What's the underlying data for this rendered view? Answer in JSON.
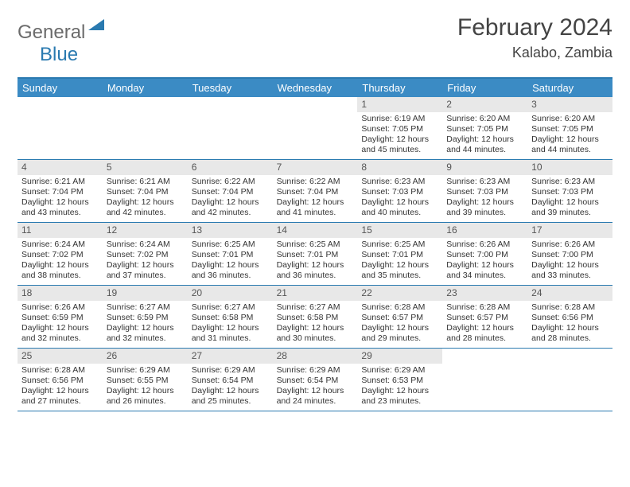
{
  "brand": {
    "part1": "General",
    "part2": "Blue"
  },
  "title": "February 2024",
  "location": "Kalabo, Zambia",
  "colors": {
    "header_bg": "#3b8bc4",
    "rule": "#2a7ab0",
    "daynum_bg": "#e8e8e8",
    "text": "#333333",
    "logo_gray": "#6b6b6b",
    "logo_blue": "#2a7ab0"
  },
  "day_names": [
    "Sunday",
    "Monday",
    "Tuesday",
    "Wednesday",
    "Thursday",
    "Friday",
    "Saturday"
  ],
  "weeks": [
    [
      null,
      null,
      null,
      null,
      {
        "n": "1",
        "sr": "6:19 AM",
        "ss": "7:05 PM",
        "dl": "12 hours and 45 minutes."
      },
      {
        "n": "2",
        "sr": "6:20 AM",
        "ss": "7:05 PM",
        "dl": "12 hours and 44 minutes."
      },
      {
        "n": "3",
        "sr": "6:20 AM",
        "ss": "7:05 PM",
        "dl": "12 hours and 44 minutes."
      }
    ],
    [
      {
        "n": "4",
        "sr": "6:21 AM",
        "ss": "7:04 PM",
        "dl": "12 hours and 43 minutes."
      },
      {
        "n": "5",
        "sr": "6:21 AM",
        "ss": "7:04 PM",
        "dl": "12 hours and 42 minutes."
      },
      {
        "n": "6",
        "sr": "6:22 AM",
        "ss": "7:04 PM",
        "dl": "12 hours and 42 minutes."
      },
      {
        "n": "7",
        "sr": "6:22 AM",
        "ss": "7:04 PM",
        "dl": "12 hours and 41 minutes."
      },
      {
        "n": "8",
        "sr": "6:23 AM",
        "ss": "7:03 PM",
        "dl": "12 hours and 40 minutes."
      },
      {
        "n": "9",
        "sr": "6:23 AM",
        "ss": "7:03 PM",
        "dl": "12 hours and 39 minutes."
      },
      {
        "n": "10",
        "sr": "6:23 AM",
        "ss": "7:03 PM",
        "dl": "12 hours and 39 minutes."
      }
    ],
    [
      {
        "n": "11",
        "sr": "6:24 AM",
        "ss": "7:02 PM",
        "dl": "12 hours and 38 minutes."
      },
      {
        "n": "12",
        "sr": "6:24 AM",
        "ss": "7:02 PM",
        "dl": "12 hours and 37 minutes."
      },
      {
        "n": "13",
        "sr": "6:25 AM",
        "ss": "7:01 PM",
        "dl": "12 hours and 36 minutes."
      },
      {
        "n": "14",
        "sr": "6:25 AM",
        "ss": "7:01 PM",
        "dl": "12 hours and 36 minutes."
      },
      {
        "n": "15",
        "sr": "6:25 AM",
        "ss": "7:01 PM",
        "dl": "12 hours and 35 minutes."
      },
      {
        "n": "16",
        "sr": "6:26 AM",
        "ss": "7:00 PM",
        "dl": "12 hours and 34 minutes."
      },
      {
        "n": "17",
        "sr": "6:26 AM",
        "ss": "7:00 PM",
        "dl": "12 hours and 33 minutes."
      }
    ],
    [
      {
        "n": "18",
        "sr": "6:26 AM",
        "ss": "6:59 PM",
        "dl": "12 hours and 32 minutes."
      },
      {
        "n": "19",
        "sr": "6:27 AM",
        "ss": "6:59 PM",
        "dl": "12 hours and 32 minutes."
      },
      {
        "n": "20",
        "sr": "6:27 AM",
        "ss": "6:58 PM",
        "dl": "12 hours and 31 minutes."
      },
      {
        "n": "21",
        "sr": "6:27 AM",
        "ss": "6:58 PM",
        "dl": "12 hours and 30 minutes."
      },
      {
        "n": "22",
        "sr": "6:28 AM",
        "ss": "6:57 PM",
        "dl": "12 hours and 29 minutes."
      },
      {
        "n": "23",
        "sr": "6:28 AM",
        "ss": "6:57 PM",
        "dl": "12 hours and 28 minutes."
      },
      {
        "n": "24",
        "sr": "6:28 AM",
        "ss": "6:56 PM",
        "dl": "12 hours and 28 minutes."
      }
    ],
    [
      {
        "n": "25",
        "sr": "6:28 AM",
        "ss": "6:56 PM",
        "dl": "12 hours and 27 minutes."
      },
      {
        "n": "26",
        "sr": "6:29 AM",
        "ss": "6:55 PM",
        "dl": "12 hours and 26 minutes."
      },
      {
        "n": "27",
        "sr": "6:29 AM",
        "ss": "6:54 PM",
        "dl": "12 hours and 25 minutes."
      },
      {
        "n": "28",
        "sr": "6:29 AM",
        "ss": "6:54 PM",
        "dl": "12 hours and 24 minutes."
      },
      {
        "n": "29",
        "sr": "6:29 AM",
        "ss": "6:53 PM",
        "dl": "12 hours and 23 minutes."
      },
      null,
      null
    ]
  ],
  "labels": {
    "sunrise": "Sunrise:",
    "sunset": "Sunset:",
    "daylight": "Daylight:"
  }
}
